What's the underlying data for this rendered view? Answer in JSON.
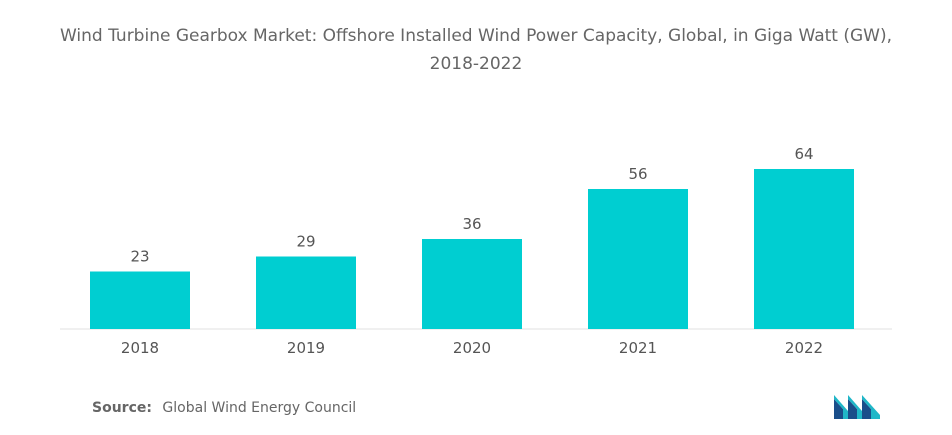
{
  "chart_data": {
    "type": "bar",
    "title": "Wind Turbine Gearbox Market: Offshore Installed Wind Power Capacity, Global, in Giga Watt (GW), 2018-2022",
    "categories": [
      "2018",
      "2019",
      "2020",
      "2021",
      "2022"
    ],
    "values": [
      23,
      29,
      36,
      56,
      64
    ],
    "xlabel": "",
    "ylabel": "",
    "ylim": [
      0,
      70
    ],
    "grid": false,
    "legend": "none",
    "bar_color": "#00CED1"
  },
  "source": {
    "label": "Source:",
    "text": "Global Wind Energy Council"
  },
  "logo": {
    "icon": "mordor-intelligence-logo-icon",
    "colors": [
      "#1a4e8a",
      "#20b7c8"
    ]
  }
}
